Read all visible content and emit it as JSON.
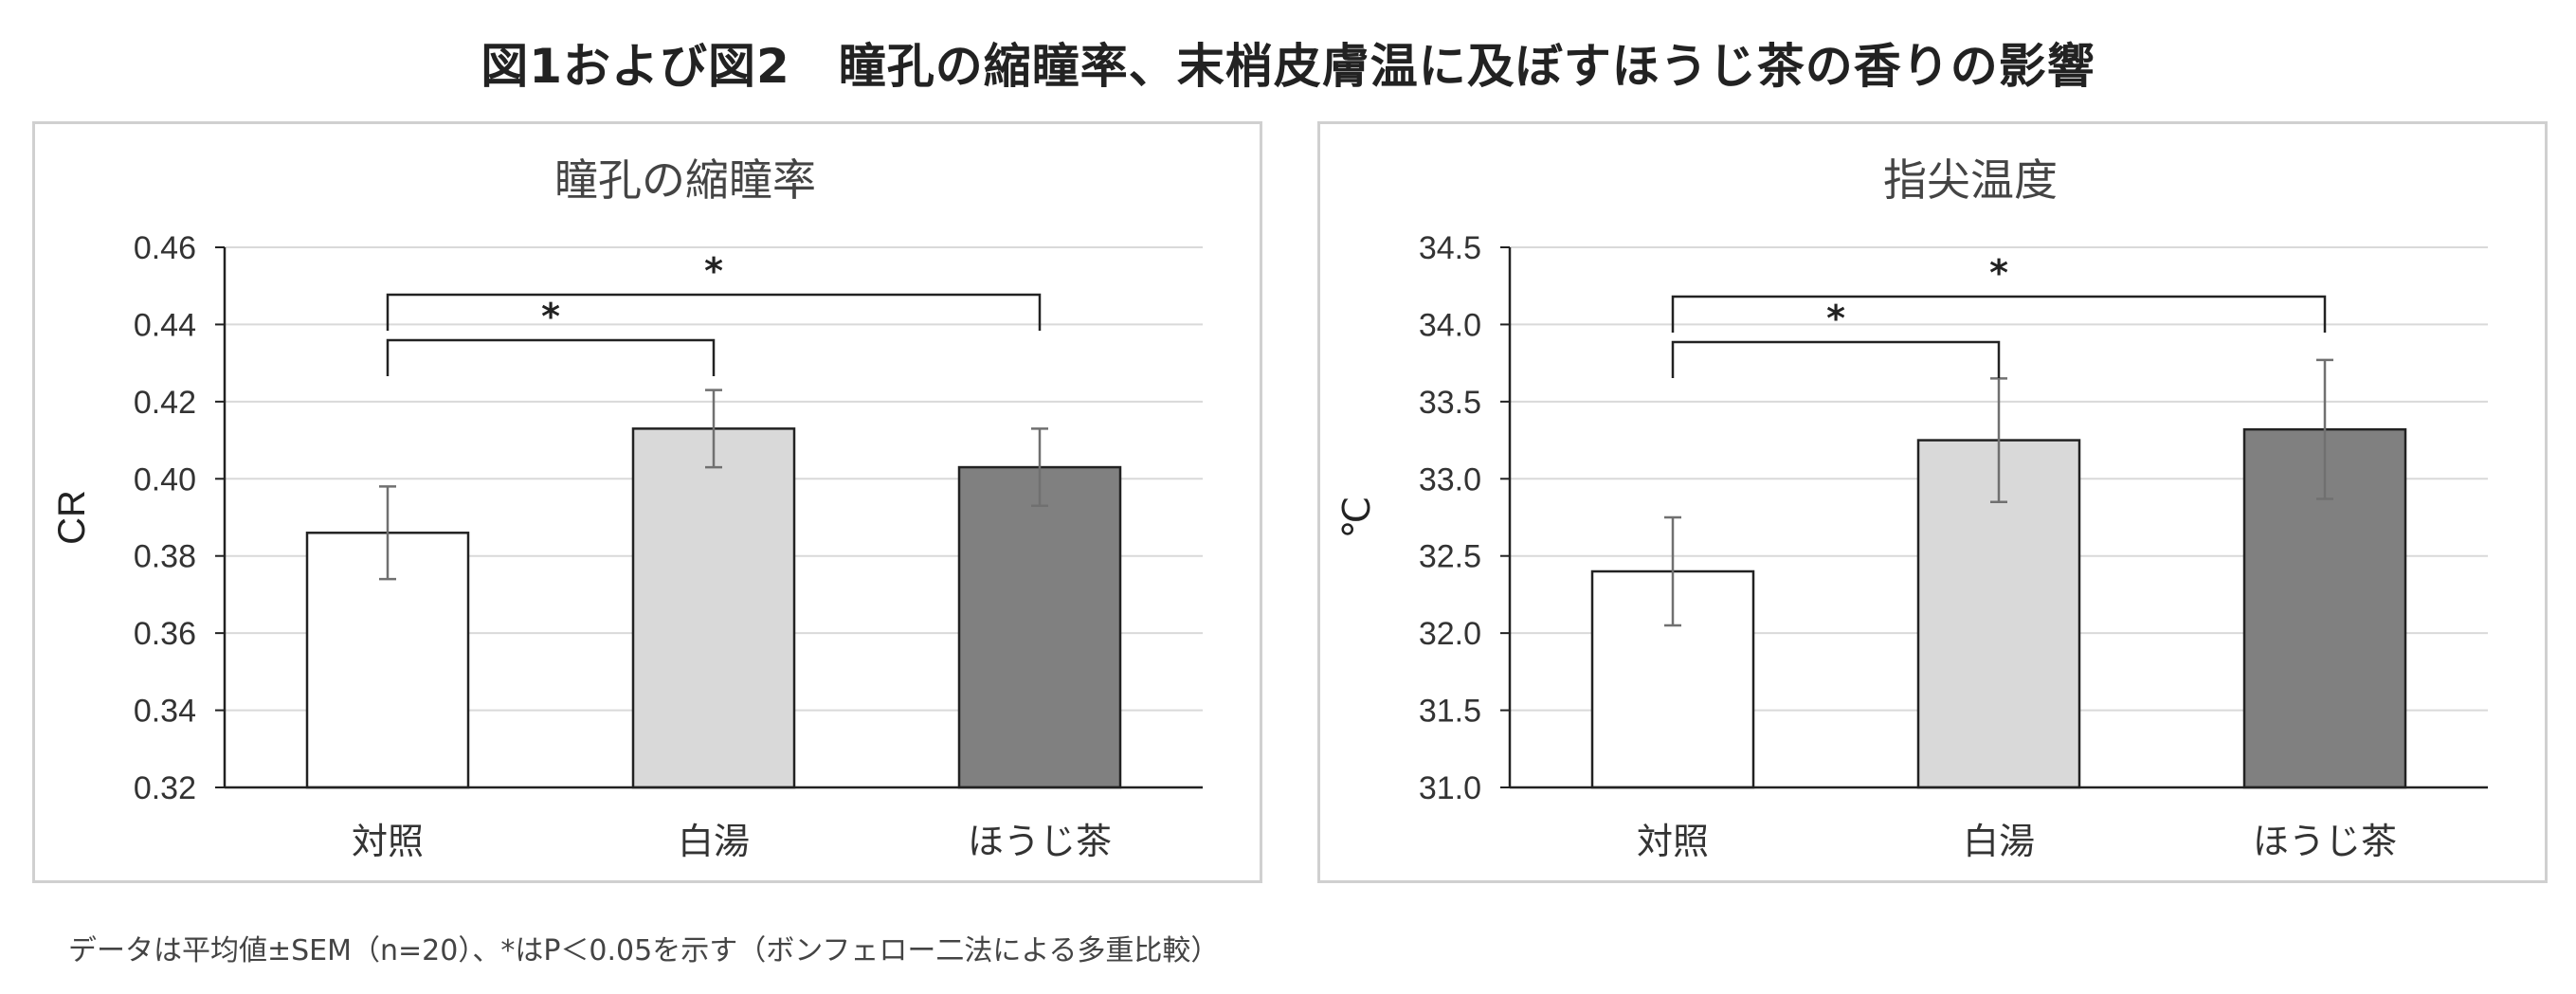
{
  "title": "図1および図2　瞳孔の縮瞳率、末梢皮膚温に及ぼすほうじ茶の香りの影響",
  "footnote": "データは平均値±SEM（n=20）、*はP＜0.05を示す（ボンフェロー二法による多重比較）",
  "colors": {
    "bar_control": "#ffffff",
    "bar_white_water": "#d9d9d9",
    "bar_houjicha": "#808080",
    "bar_edge": "#222222",
    "grid": "#d9d9d9",
    "error_bar": "#707070"
  },
  "chart_data": [
    {
      "type": "bar",
      "title": "瞳孔の縮瞳率",
      "xlabel": "",
      "ylabel": "CR",
      "categories": [
        "対照",
        "白湯",
        "ほうじ茶"
      ],
      "values": [
        0.386,
        0.413,
        0.403
      ],
      "errors": [
        0.012,
        0.01,
        0.01
      ],
      "ylim": [
        0.32,
        0.46
      ],
      "yticks": [
        0.32,
        0.34,
        0.36,
        0.38,
        0.4,
        0.42,
        0.44,
        0.46
      ],
      "ytick_labels": [
        "0.32",
        "0.34",
        "0.36",
        "0.38",
        "0.40",
        "0.42",
        "0.44",
        "0.46"
      ],
      "grid": true,
      "significance": [
        {
          "from": 0,
          "to": 1,
          "label": "*"
        },
        {
          "from": 0,
          "to": 2,
          "label": "*"
        }
      ]
    },
    {
      "type": "bar",
      "title": "指尖温度",
      "xlabel": "",
      "ylabel": "℃",
      "categories": [
        "対照",
        "白湯",
        "ほうじ茶"
      ],
      "values": [
        32.4,
        33.25,
        33.32
      ],
      "errors": [
        0.35,
        0.4,
        0.45
      ],
      "ylim": [
        31.0,
        34.5
      ],
      "yticks": [
        31.0,
        31.5,
        32.0,
        32.5,
        33.0,
        33.5,
        34.0,
        34.5
      ],
      "ytick_labels": [
        "31.0",
        "31.5",
        "32.0",
        "32.5",
        "33.0",
        "33.5",
        "34.0",
        "34.5"
      ],
      "grid": true,
      "significance": [
        {
          "from": 0,
          "to": 1,
          "label": "*"
        },
        {
          "from": 0,
          "to": 2,
          "label": "*"
        }
      ]
    }
  ]
}
